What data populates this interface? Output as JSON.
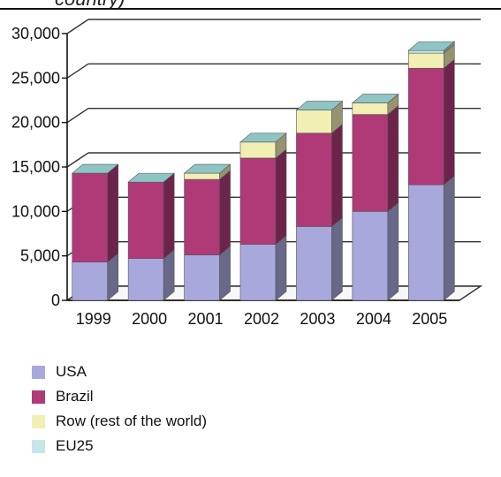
{
  "header": {
    "title_fragment": "country)"
  },
  "chart_data": {
    "type": "bar",
    "stacked": true,
    "style": "3d",
    "categories": [
      "1999",
      "2000",
      "2001",
      "2002",
      "2003",
      "2004",
      "2005"
    ],
    "series": [
      {
        "name": "USA",
        "color": "#a9a8dc",
        "values": [
          4300,
          4700,
          5100,
          6300,
          8300,
          10000,
          13000
        ]
      },
      {
        "name": "Brazil",
        "color": "#b03a78",
        "values": [
          10000,
          8600,
          8500,
          9700,
          10500,
          10900,
          13100
        ]
      },
      {
        "name": "Row (rest of the world)",
        "color": "#f2efb4",
        "values": [
          0,
          0,
          700,
          1800,
          2600,
          1300,
          1700
        ]
      },
      {
        "name": "EU25",
        "color": "#c6e6ea",
        "values": [
          0,
          0,
          0,
          0,
          0,
          0,
          300
        ]
      }
    ],
    "y_ticks": [
      "0",
      "5,000",
      "10,000",
      "15,000",
      "20,000",
      "25,000",
      "30,000"
    ],
    "ylim": [
      0,
      30000
    ],
    "grid": true,
    "legend_position": "bottom-left"
  }
}
